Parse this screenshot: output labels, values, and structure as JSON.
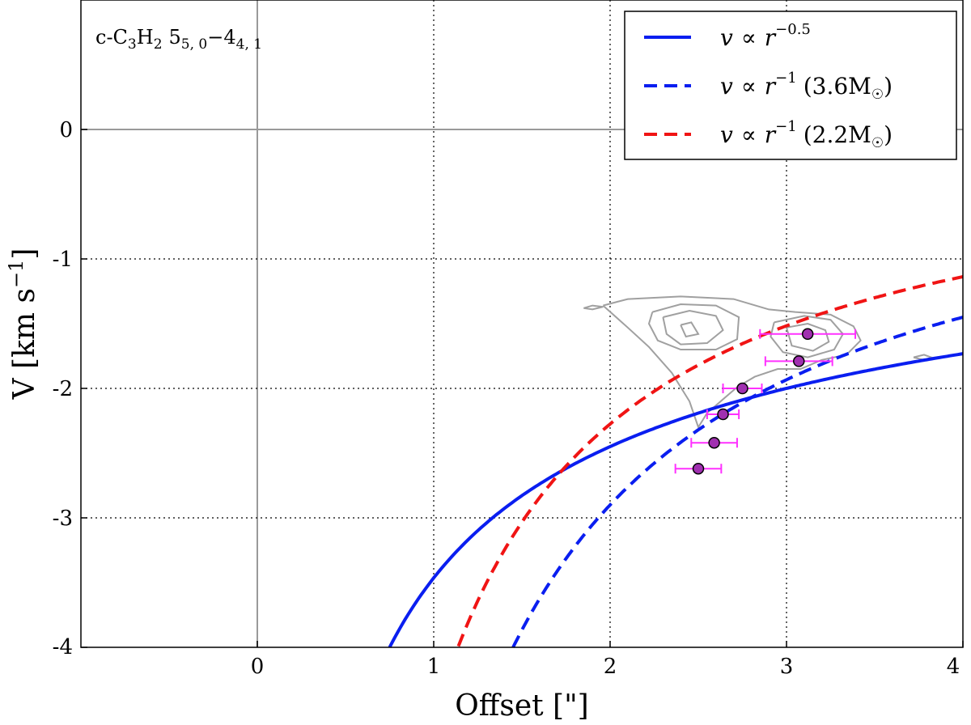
{
  "chart_data": {
    "type": "line",
    "title": "c-C3H2 5_{5,0}−4_{4,1}",
    "title_parts": {
      "species": "c-C",
      "sub1": "3",
      "h": "H",
      "sub2": "2",
      "upper": "5",
      "upper_sub": "5, 0",
      "dash": "−",
      "lower": "4",
      "lower_sub": "4, 1"
    },
    "xlabel": "Offset [\"]",
    "ylabel": "V [km s",
    "ylabel_sup": "−1",
    "ylabel_end": "]",
    "xlim": [
      -1,
      4
    ],
    "ylim": [
      -4,
      1
    ],
    "xticks": [
      0,
      1,
      2,
      3,
      4
    ],
    "xtick_labels": [
      "0",
      "1",
      "2",
      "3",
      "4"
    ],
    "yticks": [
      0,
      -1,
      -2,
      -3,
      -4
    ],
    "ytick_labels": [
      "0",
      "-1",
      "-2",
      "-3",
      "-4"
    ],
    "grid": true,
    "legend_position": "top-right",
    "series": [
      {
        "name": "v ∝ r^-0.5",
        "legend": {
          "v": "v",
          "prop": "∝",
          "r": "r",
          "sup": "−0.5",
          "extra": ""
        },
        "color": "#0a1ef0",
        "style": "solid",
        "formula": {
          "coef": -3.4641,
          "power": -0.5
        },
        "x_start": 0.75
      },
      {
        "name": "v ∝ r^-1 (3.6M☉)",
        "legend": {
          "v": "v",
          "prop": "∝",
          "r": "r",
          "sup": "−1",
          "extra": "(3.6M",
          "sun": "☉",
          "close": ")"
        },
        "color": "#0a1ef0",
        "style": "dashed",
        "formula": {
          "coef": -5.8,
          "power": -1
        },
        "x_start": 1.45
      },
      {
        "name": "v ∝ r^-1 (2.2M☉)",
        "legend": {
          "v": "v",
          "prop": "∝",
          "r": "r",
          "sup": "−1",
          "extra": "(2.2M",
          "sun": "☉",
          "close": ")"
        },
        "color": "#f01414",
        "style": "dashed",
        "formula": {
          "coef": -4.55,
          "power": -1
        },
        "x_start": 1.14
      }
    ],
    "points": [
      {
        "x": 3.12,
        "y": -1.58,
        "xerr": 0.27
      },
      {
        "x": 3.07,
        "y": -1.79,
        "xerr": 0.19
      },
      {
        "x": 2.75,
        "y": -2.0,
        "xerr": 0.11
      },
      {
        "x": 2.64,
        "y": -2.2,
        "xerr": 0.09
      },
      {
        "x": 2.59,
        "y": -2.42,
        "xerr": 0.13
      },
      {
        "x": 2.5,
        "y": -2.62,
        "xerr": 0.13
      }
    ],
    "point_color": "#a030b0",
    "errorbar_color": "#ff30ff",
    "contours": [
      [
        [
          1.96,
          -1.36
        ],
        [
          2.1,
          -1.31
        ],
        [
          2.4,
          -1.29
        ],
        [
          2.7,
          -1.31
        ],
        [
          2.9,
          -1.39
        ],
        [
          3.05,
          -1.41
        ],
        [
          3.25,
          -1.43
        ],
        [
          3.38,
          -1.52
        ],
        [
          3.42,
          -1.63
        ],
        [
          3.34,
          -1.74
        ],
        [
          3.2,
          -1.78
        ],
        [
          3.08,
          -1.85
        ],
        [
          2.95,
          -1.85
        ],
        [
          2.82,
          -1.91
        ],
        [
          2.72,
          -1.99
        ],
        [
          2.55,
          -2.19
        ],
        [
          2.5,
          -2.3
        ],
        [
          2.45,
          -2.1
        ],
        [
          2.35,
          -1.88
        ],
        [
          2.22,
          -1.68
        ],
        [
          2.1,
          -1.53
        ],
        [
          1.96,
          -1.36
        ]
      ],
      [
        [
          2.24,
          -1.41
        ],
        [
          2.4,
          -1.35
        ],
        [
          2.6,
          -1.36
        ],
        [
          2.73,
          -1.45
        ],
        [
          2.72,
          -1.62
        ],
        [
          2.6,
          -1.7
        ],
        [
          2.4,
          -1.7
        ],
        [
          2.27,
          -1.63
        ],
        [
          2.22,
          -1.5
        ],
        [
          2.24,
          -1.41
        ]
      ],
      [
        [
          2.3,
          -1.45
        ],
        [
          2.45,
          -1.4
        ],
        [
          2.6,
          -1.44
        ],
        [
          2.64,
          -1.55
        ],
        [
          2.55,
          -1.65
        ],
        [
          2.4,
          -1.66
        ],
        [
          2.32,
          -1.58
        ],
        [
          2.3,
          -1.45
        ]
      ],
      [
        [
          2.93,
          -1.49
        ],
        [
          3.1,
          -1.44
        ],
        [
          3.25,
          -1.47
        ],
        [
          3.32,
          -1.58
        ],
        [
          3.27,
          -1.7
        ],
        [
          3.12,
          -1.76
        ],
        [
          2.98,
          -1.72
        ],
        [
          2.91,
          -1.6
        ],
        [
          2.93,
          -1.49
        ]
      ],
      [
        [
          3.0,
          -1.53
        ],
        [
          3.12,
          -1.5
        ],
        [
          3.22,
          -1.55
        ],
        [
          3.24,
          -1.64
        ],
        [
          3.15,
          -1.71
        ],
        [
          3.03,
          -1.67
        ],
        [
          3.0,
          -1.53
        ]
      ],
      [
        [
          2.4,
          -1.51
        ],
        [
          2.46,
          -1.49
        ],
        [
          2.5,
          -1.58
        ],
        [
          2.43,
          -1.6
        ],
        [
          2.4,
          -1.51
        ]
      ],
      [
        [
          1.85,
          -1.38
        ],
        [
          1.9,
          -1.36
        ],
        [
          1.96,
          -1.37
        ],
        [
          1.9,
          -1.39
        ],
        [
          1.85,
          -1.38
        ]
      ],
      [
        [
          3.72,
          -1.76
        ],
        [
          3.78,
          -1.74
        ],
        [
          3.84,
          -1.77
        ],
        [
          3.78,
          -1.78
        ],
        [
          3.72,
          -1.76
        ]
      ]
    ],
    "contour_color": "#a0a0a0"
  }
}
